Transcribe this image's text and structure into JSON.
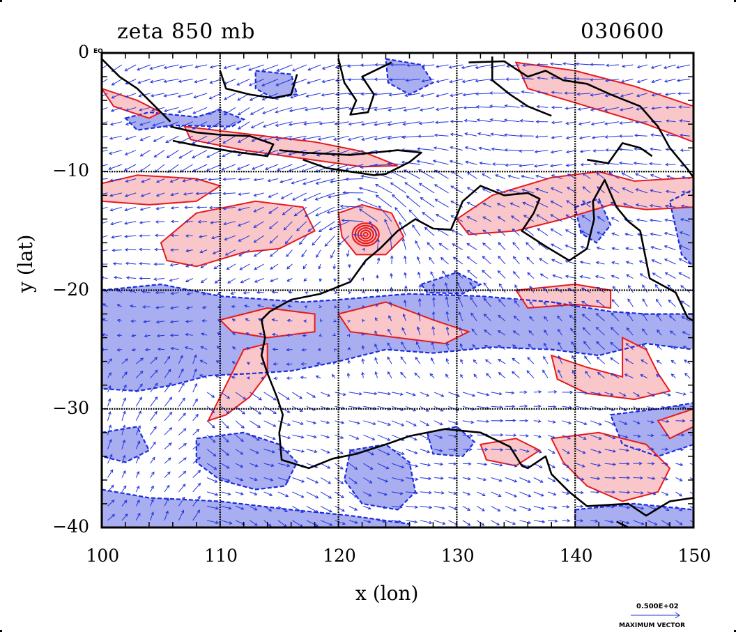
{
  "title_left": "zeta 850 mb",
  "title_right": "030600",
  "chart_data": {
    "type": "contour-vector-map",
    "xlabel": "x (lon)",
    "ylabel": "y (lat)",
    "xlim": [
      100,
      150
    ],
    "ylim": [
      -40,
      0
    ],
    "xticks": [
      100,
      110,
      120,
      130,
      140,
      150
    ],
    "yticks": [
      0,
      -10,
      -20,
      -30,
      -40
    ],
    "xtick_labels": [
      "100",
      "110",
      "120",
      "130",
      "140",
      "150"
    ],
    "ytick_labels": [
      "0",
      "−10",
      "−20",
      "−30",
      "−40"
    ],
    "corner_label": "EQ",
    "grid": true,
    "positive_contour_color": "#e8191c",
    "positive_fill_color": "#f9c6c9",
    "negative_contour_color": "#1a2be0",
    "negative_fill_color": "#a8aef0",
    "vector_color": "#2233dd",
    "cyclone_center": [
      122.3,
      -15.3
    ],
    "positive_regions": [
      [
        [
          105,
          -16
        ],
        [
          108,
          -13.5
        ],
        [
          113,
          -12.5
        ],
        [
          117,
          -13
        ],
        [
          118,
          -15
        ],
        [
          115,
          -16.5
        ],
        [
          112,
          -16.8
        ],
        [
          108,
          -18
        ],
        [
          105.5,
          -17.5
        ]
      ],
      [
        [
          100,
          -11
        ],
        [
          103,
          -10.3
        ],
        [
          108,
          -10.6
        ],
        [
          110,
          -11.2
        ],
        [
          108,
          -12.5
        ],
        [
          104,
          -12.8
        ],
        [
          100,
          -12.5
        ]
      ],
      [
        [
          120,
          -13.5
        ],
        [
          122,
          -12.8
        ],
        [
          124.5,
          -13.5
        ],
        [
          125.5,
          -15.5
        ],
        [
          124,
          -17
        ],
        [
          121.5,
          -17
        ],
        [
          120.3,
          -15.5
        ]
      ],
      [
        [
          130,
          -14
        ],
        [
          133,
          -12
        ],
        [
          138,
          -10.5
        ],
        [
          142,
          -10
        ],
        [
          145,
          -10.8
        ],
        [
          150,
          -10.5
        ],
        [
          150,
          -13
        ],
        [
          146,
          -13.2
        ],
        [
          143,
          -12.8
        ],
        [
          139,
          -14
        ],
        [
          135,
          -15
        ],
        [
          131,
          -15.3
        ]
      ],
      [
        [
          135,
          -20
        ],
        [
          140,
          -19.5
        ],
        [
          143,
          -20
        ],
        [
          143,
          -21.5
        ],
        [
          140,
          -21.2
        ],
        [
          136,
          -21.5
        ]
      ],
      [
        [
          120,
          -22
        ],
        [
          124,
          -21
        ],
        [
          128,
          -22.5
        ],
        [
          131,
          -23.5
        ],
        [
          129,
          -24.5
        ],
        [
          125,
          -24
        ],
        [
          121,
          -23.5
        ]
      ],
      [
        [
          110,
          -22.5
        ],
        [
          114,
          -21.5
        ],
        [
          118,
          -22
        ],
        [
          118,
          -23.5
        ],
        [
          114,
          -24
        ],
        [
          111,
          -23.5
        ]
      ],
      [
        [
          112,
          -25
        ],
        [
          114,
          -24.5
        ],
        [
          114,
          -27
        ],
        [
          112.5,
          -29
        ],
        [
          110.5,
          -30.5
        ],
        [
          109,
          -31
        ],
        [
          110,
          -29
        ]
      ],
      [
        [
          138,
          -25.5
        ],
        [
          141,
          -26.5
        ],
        [
          144,
          -27.3
        ],
        [
          144,
          -24
        ],
        [
          146,
          -25
        ],
        [
          147,
          -27
        ],
        [
          148,
          -28.5
        ],
        [
          145,
          -29.2
        ],
        [
          141,
          -28.7
        ],
        [
          138.5,
          -27.5
        ]
      ],
      [
        [
          138,
          -32.5
        ],
        [
          142,
          -32
        ],
        [
          146,
          -33
        ],
        [
          148,
          -35
        ],
        [
          147,
          -37
        ],
        [
          144,
          -37.8
        ],
        [
          141,
          -36.5
        ],
        [
          139,
          -34.5
        ]
      ],
      [
        [
          132,
          -33
        ],
        [
          135,
          -32.5
        ],
        [
          137,
          -33.5
        ],
        [
          135,
          -34.8
        ],
        [
          132.5,
          -34.3
        ]
      ],
      [
        [
          135,
          -0.8
        ],
        [
          140,
          -1.5
        ],
        [
          145,
          -2.8
        ],
        [
          150,
          -4.5
        ],
        [
          150,
          -7.5
        ],
        [
          146,
          -6
        ],
        [
          141,
          -4.5
        ],
        [
          136,
          -3
        ]
      ],
      [
        [
          107,
          -6.2
        ],
        [
          112,
          -6.8
        ],
        [
          118,
          -7.5
        ],
        [
          122,
          -8.3
        ],
        [
          125,
          -9.5
        ],
        [
          122,
          -9.6
        ],
        [
          117,
          -8.9
        ],
        [
          112,
          -8.2
        ],
        [
          107.5,
          -7.3
        ]
      ],
      [
        [
          100,
          -3
        ],
        [
          103,
          -4
        ],
        [
          105,
          -5
        ],
        [
          104,
          -5.5
        ],
        [
          101,
          -4.5
        ]
      ],
      [
        [
          147,
          -31
        ],
        [
          150,
          -30
        ],
        [
          150,
          -31.5
        ],
        [
          148,
          -32.5
        ]
      ]
    ],
    "negative_regions": [
      [
        [
          100,
          -20
        ],
        [
          105,
          -19.5
        ],
        [
          110,
          -20.5
        ],
        [
          117,
          -21
        ],
        [
          120,
          -20.8
        ],
        [
          126,
          -20.3
        ],
        [
          132,
          -20.5
        ],
        [
          138,
          -21
        ],
        [
          143,
          -21.8
        ],
        [
          146,
          -22
        ],
        [
          150,
          -22
        ],
        [
          150,
          -25
        ],
        [
          146,
          -24.5
        ],
        [
          142,
          -25.5
        ],
        [
          138,
          -25
        ],
        [
          133,
          -24.8
        ],
        [
          128,
          -25.3
        ],
        [
          124,
          -25
        ],
        [
          120,
          -26
        ],
        [
          116,
          -26.8
        ],
        [
          113,
          -27
        ],
        [
          109,
          -27.2
        ],
        [
          106,
          -28
        ],
        [
          103,
          -28.5
        ],
        [
          100,
          -28.3
        ]
      ],
      [
        [
          108,
          -32.5
        ],
        [
          112,
          -32
        ],
        [
          115,
          -33
        ],
        [
          116.5,
          -34.5
        ],
        [
          115.5,
          -36.5
        ],
        [
          113,
          -36.8
        ],
        [
          110,
          -36
        ],
        [
          108,
          -34.5
        ]
      ],
      [
        [
          121,
          -33.5
        ],
        [
          124,
          -33
        ],
        [
          126,
          -34.5
        ],
        [
          126.5,
          -37
        ],
        [
          125,
          -38.5
        ],
        [
          122,
          -38
        ],
        [
          120.5,
          -36
        ]
      ],
      [
        [
          100,
          -36.8
        ],
        [
          104,
          -37.5
        ],
        [
          110,
          -37.8
        ],
        [
          116,
          -38.5
        ],
        [
          121,
          -39
        ],
        [
          126,
          -39.7
        ],
        [
          126,
          -40
        ],
        [
          100,
          -40
        ]
      ],
      [
        [
          127.5,
          -32
        ],
        [
          130,
          -31.5
        ],
        [
          131.5,
          -32.8
        ],
        [
          130.5,
          -34
        ],
        [
          128,
          -33.8
        ]
      ],
      [
        [
          148,
          -12.5
        ],
        [
          150,
          -11.5
        ],
        [
          150,
          -18
        ],
        [
          149,
          -17
        ]
      ],
      [
        [
          140,
          -13
        ],
        [
          142,
          -12.3
        ],
        [
          143,
          -14.5
        ],
        [
          141.8,
          -16
        ],
        [
          140.5,
          -15.2
        ]
      ],
      [
        [
          102,
          -5.5
        ],
        [
          104,
          -5
        ],
        [
          108,
          -5.4
        ],
        [
          110,
          -4.8
        ],
        [
          112,
          -5.6
        ],
        [
          111,
          -6.2
        ],
        [
          106,
          -6.1
        ],
        [
          103,
          -6.5
        ]
      ],
      [
        [
          113,
          -1.5
        ],
        [
          116,
          -1.8
        ],
        [
          116.5,
          -3.5
        ],
        [
          114.5,
          -3.8
        ],
        [
          113,
          -3
        ]
      ],
      [
        [
          124,
          -0.5
        ],
        [
          127,
          -1
        ],
        [
          128,
          -2.5
        ],
        [
          126,
          -3.5
        ],
        [
          124.2,
          -2.5
        ]
      ],
      [
        [
          127,
          -19.5
        ],
        [
          130,
          -18.5
        ],
        [
          132,
          -19.5
        ],
        [
          130.5,
          -20.3
        ],
        [
          127.5,
          -20.2
        ]
      ],
      [
        [
          143,
          -30.5
        ],
        [
          147,
          -30
        ],
        [
          150,
          -29.5
        ],
        [
          150,
          -33
        ],
        [
          147,
          -34
        ],
        [
          144,
          -33
        ]
      ],
      [
        [
          140,
          -38.5
        ],
        [
          145,
          -38
        ],
        [
          150,
          -38.5
        ],
        [
          150,
          -40
        ],
        [
          140,
          -40
        ]
      ],
      [
        [
          100,
          -32
        ],
        [
          103,
          -31.5
        ],
        [
          104,
          -33.5
        ],
        [
          102,
          -34.5
        ],
        [
          100,
          -34
        ]
      ]
    ]
  },
  "legend": {
    "value": "0.500E+02",
    "label": "MAXIMUM VECTOR"
  }
}
